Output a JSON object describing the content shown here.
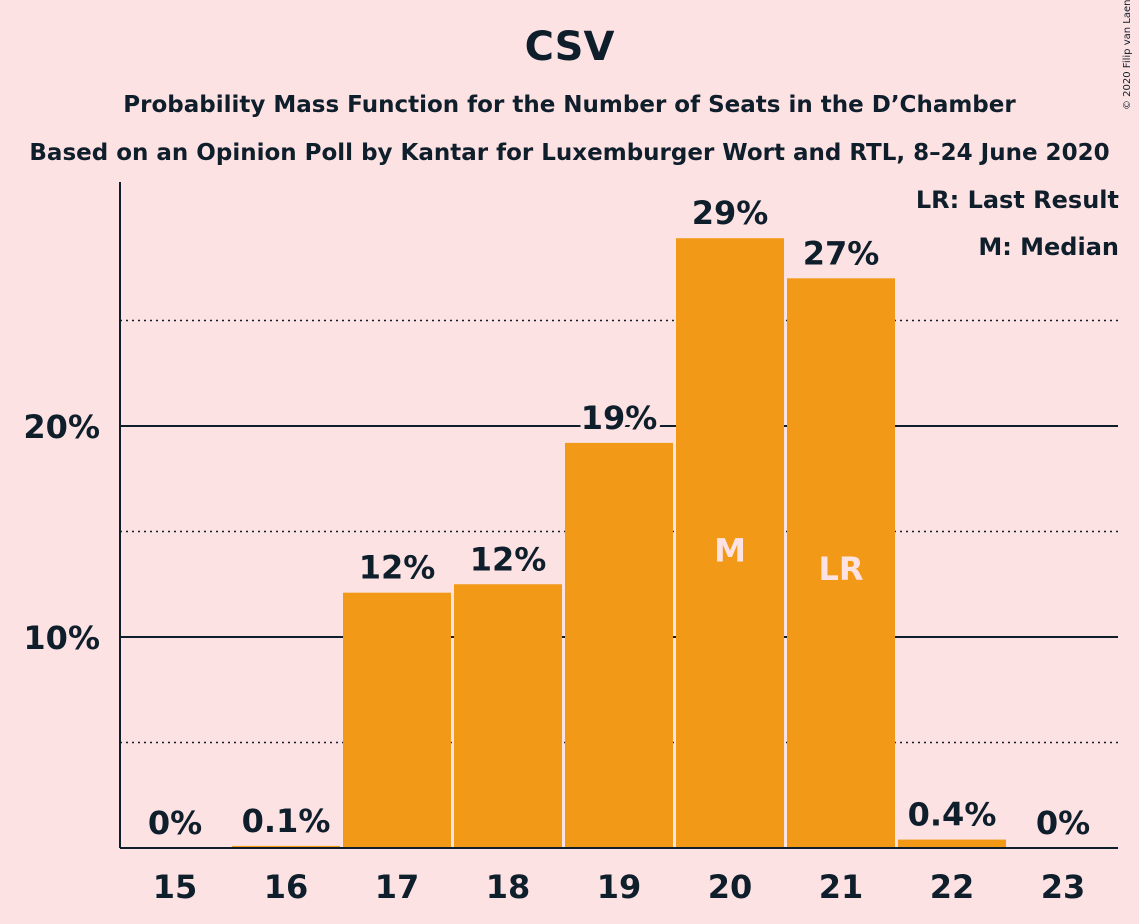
{
  "header": {
    "title": "CSV",
    "subtitle1": "Probability Mass Function for the Number of Seats in the D’Chamber",
    "subtitle2": "Based on an Opinion Poll by Kantar for Luxemburger Wort and RTL, 8–24 June 2020"
  },
  "copyright": "© 2020 Filip van Laenen",
  "legend": {
    "last_result": "LR: Last Result",
    "median": "M: Median"
  },
  "colors": {
    "bar": "#f29a17",
    "background": "#fde2e4",
    "text": "#0f1e2b",
    "marker_text": "#fde2e4"
  },
  "chart_data": {
    "type": "bar",
    "categories": [
      "15",
      "16",
      "17",
      "18",
      "19",
      "20",
      "21",
      "22",
      "23"
    ],
    "values": [
      0,
      0.1,
      12.1,
      12.5,
      19.2,
      28.9,
      27.0,
      0.4,
      0
    ],
    "value_labels": [
      "0%",
      "0.1%",
      "12%",
      "12%",
      "19%",
      "29%",
      "27%",
      "0.4%",
      "0%"
    ],
    "bar_markers": [
      "",
      "",
      "",
      "",
      "",
      "M",
      "LR",
      "",
      ""
    ],
    "y_ticks": [
      {
        "value": 10,
        "label": "10%"
      },
      {
        "value": 20,
        "label": "20%"
      }
    ],
    "y_minor_ticks": [
      5,
      15,
      25
    ],
    "ylim": [
      0,
      31.5
    ],
    "title": "CSV",
    "xlabel": "",
    "ylabel": "",
    "grid": true,
    "legend_position": "top-right"
  }
}
